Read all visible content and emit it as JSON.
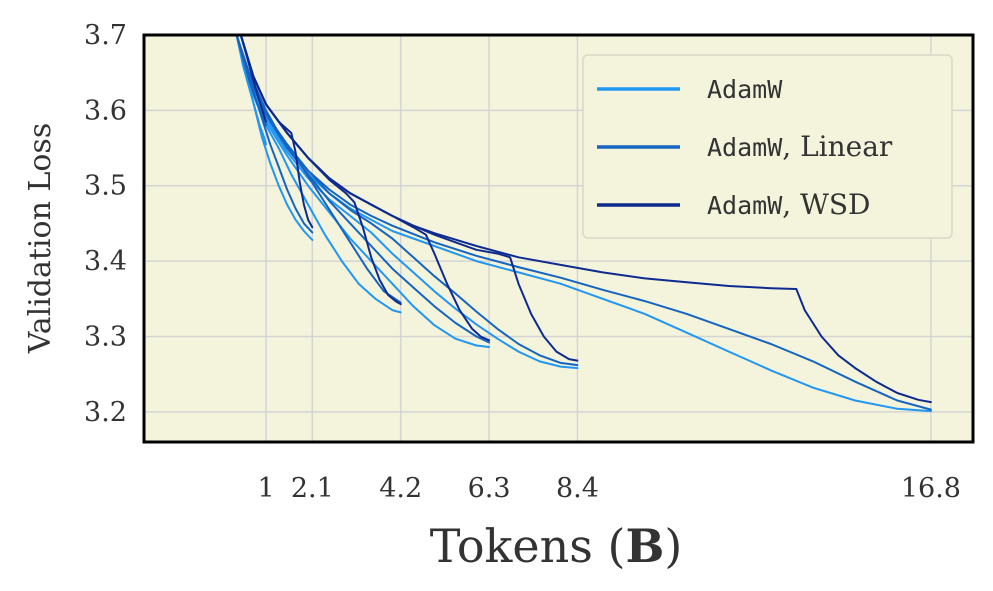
{
  "chart_data": {
    "type": "line",
    "xlabel_prefix": "Tokens",
    "xlabel_unit": "B",
    "ylabel": "Validation Loss",
    "xlim": [
      -1.9,
      17.8
    ],
    "ylim": [
      3.16,
      3.7
    ],
    "x_ticks": [
      {
        "value": 1,
        "label": "1"
      },
      {
        "value": 2.1,
        "label": "2.1"
      },
      {
        "value": 4.2,
        "label": "4.2"
      },
      {
        "value": 6.3,
        "label": "6.3"
      },
      {
        "value": 8.4,
        "label": "8.4"
      },
      {
        "value": 16.8,
        "label": "16.8"
      }
    ],
    "y_ticks": [
      {
        "value": 3.2,
        "label": "3.2"
      },
      {
        "value": 3.3,
        "label": "3.3"
      },
      {
        "value": 3.4,
        "label": "3.4"
      },
      {
        "value": 3.5,
        "label": "3.5"
      },
      {
        "value": 3.6,
        "label": "3.6"
      },
      {
        "value": 3.7,
        "label": "3.7"
      }
    ],
    "grid": true,
    "legend_position": "top-right",
    "legend": [
      {
        "label": "AdamW",
        "suffix": "",
        "color": "#2196f3"
      },
      {
        "label": "AdamW",
        "suffix": ", Linear",
        "color": "#1565c0"
      },
      {
        "label": "AdamW",
        "suffix": ", WSD",
        "color": "#0d2b8f"
      }
    ],
    "series": [
      {
        "group": "AdamW",
        "color": "#2196f3",
        "x": [
          0.3,
          0.45,
          0.6,
          0.75,
          0.85,
          0.95,
          1.0
        ],
        "y": [
          3.7,
          3.66,
          3.63,
          3.6,
          3.58,
          3.565,
          3.555
        ]
      },
      {
        "group": "AdamW",
        "color": "#2196f3",
        "x": [
          0.3,
          0.5,
          0.7,
          0.9,
          1.1,
          1.3,
          1.5,
          1.7,
          1.9,
          2.1
        ],
        "y": [
          3.7,
          3.655,
          3.61,
          3.565,
          3.53,
          3.5,
          3.475,
          3.455,
          3.44,
          3.428
        ]
      },
      {
        "group": "AdamW",
        "color": "#2196f3",
        "x": [
          0.3,
          0.5,
          0.7,
          1.0,
          1.3,
          1.6,
          2.0,
          2.4,
          2.8,
          3.2,
          3.6,
          4.0,
          4.2
        ],
        "y": [
          3.7,
          3.655,
          3.62,
          3.58,
          3.55,
          3.515,
          3.475,
          3.435,
          3.4,
          3.37,
          3.35,
          3.335,
          3.332
        ]
      },
      {
        "group": "AdamW",
        "color": "#2196f3",
        "x": [
          0.3,
          0.6,
          1.0,
          1.5,
          2.0,
          2.5,
          3.0,
          3.5,
          4.0,
          4.5,
          5.0,
          5.5,
          6.0,
          6.3
        ],
        "y": [
          3.7,
          3.64,
          3.585,
          3.54,
          3.5,
          3.465,
          3.43,
          3.4,
          3.37,
          3.34,
          3.315,
          3.297,
          3.288,
          3.286
        ]
      },
      {
        "group": "AdamW",
        "color": "#2196f3",
        "x": [
          0.3,
          0.6,
          1.0,
          1.5,
          2.0,
          2.5,
          3.0,
          3.5,
          4.0,
          4.5,
          5.0,
          5.5,
          6.0,
          6.5,
          7.0,
          7.5,
          8.0,
          8.4
        ],
        "y": [
          3.7,
          3.64,
          3.59,
          3.545,
          3.51,
          3.482,
          3.46,
          3.438,
          3.41,
          3.385,
          3.36,
          3.337,
          3.316,
          3.297,
          3.28,
          3.267,
          3.26,
          3.258
        ]
      },
      {
        "group": "AdamW",
        "color": "#2196f3",
        "x": [
          0.3,
          0.6,
          1.0,
          1.5,
          2.0,
          2.5,
          3.0,
          3.5,
          4.0,
          5.0,
          6.0,
          7.0,
          8.0,
          9.0,
          10.0,
          11.0,
          12.0,
          13.0,
          14.0,
          15.0,
          16.0,
          16.8
        ],
        "y": [
          3.7,
          3.64,
          3.59,
          3.55,
          3.515,
          3.49,
          3.47,
          3.455,
          3.44,
          3.42,
          3.4,
          3.385,
          3.37,
          3.35,
          3.33,
          3.305,
          3.28,
          3.255,
          3.232,
          3.215,
          3.204,
          3.201
        ]
      },
      {
        "group": "AdamW, Linear",
        "color": "#1565c0",
        "x": [
          0.3,
          0.45,
          0.6,
          0.75,
          0.9,
          1.0
        ],
        "y": [
          3.7,
          3.67,
          3.64,
          3.615,
          3.595,
          3.58
        ]
      },
      {
        "group": "AdamW, Linear",
        "color": "#1565c0",
        "x": [
          0.3,
          0.5,
          0.7,
          0.9,
          1.1,
          1.3,
          1.5,
          1.7,
          1.9,
          2.1
        ],
        "y": [
          3.7,
          3.66,
          3.625,
          3.59,
          3.555,
          3.525,
          3.495,
          3.47,
          3.45,
          3.438
        ]
      },
      {
        "group": "AdamW, Linear",
        "color": "#1565c0",
        "x": [
          0.3,
          0.6,
          1.0,
          1.4,
          1.8,
          2.2,
          2.6,
          3.0,
          3.4,
          3.8,
          4.2
        ],
        "y": [
          3.7,
          3.65,
          3.6,
          3.56,
          3.53,
          3.495,
          3.46,
          3.425,
          3.39,
          3.36,
          3.345
        ]
      },
      {
        "group": "AdamW, Linear",
        "color": "#1565c0",
        "x": [
          0.3,
          0.6,
          1.0,
          1.5,
          2.0,
          2.5,
          3.0,
          3.5,
          4.0,
          4.5,
          5.0,
          5.5,
          6.0,
          6.3
        ],
        "y": [
          3.7,
          3.645,
          3.595,
          3.55,
          3.515,
          3.48,
          3.45,
          3.42,
          3.39,
          3.365,
          3.34,
          3.318,
          3.3,
          3.292
        ]
      },
      {
        "group": "AdamW, Linear",
        "color": "#1565c0",
        "x": [
          0.3,
          0.6,
          1.0,
          1.5,
          2.0,
          2.5,
          3.0,
          3.5,
          4.0,
          4.5,
          5.0,
          5.5,
          6.0,
          6.5,
          7.0,
          7.5,
          8.0,
          8.4
        ],
        "y": [
          3.7,
          3.645,
          3.595,
          3.552,
          3.52,
          3.49,
          3.468,
          3.45,
          3.43,
          3.405,
          3.38,
          3.357,
          3.333,
          3.31,
          3.29,
          3.275,
          3.265,
          3.262
        ]
      },
      {
        "group": "AdamW, Linear",
        "color": "#1565c0",
        "x": [
          0.3,
          0.6,
          1.0,
          1.5,
          2.0,
          2.5,
          3.0,
          3.5,
          4.0,
          5.0,
          6.0,
          7.0,
          8.0,
          9.0,
          10.0,
          11.0,
          12.0,
          13.0,
          14.0,
          15.0,
          16.0,
          16.8
        ],
        "y": [
          3.7,
          3.645,
          3.595,
          3.555,
          3.52,
          3.495,
          3.475,
          3.46,
          3.447,
          3.425,
          3.407,
          3.392,
          3.378,
          3.362,
          3.347,
          3.33,
          3.31,
          3.29,
          3.267,
          3.24,
          3.215,
          3.203
        ]
      },
      {
        "group": "AdamW, WSD",
        "color": "#0d2b8f",
        "x": [
          0.4,
          0.6,
          0.8,
          1.0
        ],
        "y": [
          3.7,
          3.66,
          3.62,
          3.585
        ]
      },
      {
        "group": "AdamW, WSD",
        "color": "#0d2b8f",
        "x": [
          0.4,
          0.7,
          1.0,
          1.3,
          1.6,
          1.7,
          1.8,
          1.9,
          2.0,
          2.1
        ],
        "y": [
          3.7,
          3.645,
          3.608,
          3.585,
          3.57,
          3.545,
          3.505,
          3.475,
          3.455,
          3.445
        ]
      },
      {
        "group": "AdamW, WSD",
        "color": "#0d2b8f",
        "x": [
          0.4,
          0.7,
          1.0,
          1.5,
          2.0,
          2.5,
          2.9,
          3.1,
          3.3,
          3.5,
          3.7,
          3.9,
          4.1,
          4.2
        ],
        "y": [
          3.7,
          3.645,
          3.608,
          3.57,
          3.537,
          3.508,
          3.49,
          3.478,
          3.445,
          3.405,
          3.375,
          3.355,
          3.346,
          3.343
        ]
      },
      {
        "group": "AdamW, WSD",
        "color": "#0d2b8f",
        "x": [
          0.4,
          0.7,
          1.0,
          1.5,
          2.0,
          2.5,
          3.0,
          3.5,
          4.0,
          4.5,
          4.8,
          5.0,
          5.3,
          5.6,
          5.9,
          6.1,
          6.3
        ],
        "y": [
          3.7,
          3.645,
          3.608,
          3.57,
          3.537,
          3.51,
          3.49,
          3.475,
          3.46,
          3.445,
          3.435,
          3.41,
          3.37,
          3.335,
          3.31,
          3.3,
          3.295
        ]
      },
      {
        "group": "AdamW, WSD",
        "color": "#0d2b8f",
        "x": [
          0.4,
          0.7,
          1.0,
          1.5,
          2.0,
          2.5,
          3.0,
          3.5,
          4.0,
          4.5,
          5.0,
          5.5,
          6.0,
          6.5,
          6.8,
          7.0,
          7.3,
          7.6,
          7.9,
          8.2,
          8.4
        ],
        "y": [
          3.7,
          3.645,
          3.608,
          3.57,
          3.537,
          3.51,
          3.49,
          3.475,
          3.46,
          3.447,
          3.435,
          3.425,
          3.415,
          3.41,
          3.405,
          3.37,
          3.33,
          3.3,
          3.28,
          3.27,
          3.268
        ]
      },
      {
        "group": "AdamW, WSD",
        "color": "#0d2b8f",
        "x": [
          0.4,
          0.7,
          1.0,
          1.5,
          2.0,
          2.5,
          3.0,
          3.5,
          4.0,
          4.5,
          5.0,
          6.0,
          7.0,
          8.0,
          9.0,
          10.0,
          11.0,
          12.0,
          13.0,
          13.6,
          13.8,
          14.2,
          14.6,
          15.0,
          15.5,
          16.0,
          16.5,
          16.8
        ],
        "y": [
          3.7,
          3.645,
          3.608,
          3.57,
          3.537,
          3.51,
          3.49,
          3.475,
          3.46,
          3.447,
          3.437,
          3.42,
          3.405,
          3.395,
          3.385,
          3.377,
          3.372,
          3.367,
          3.364,
          3.363,
          3.335,
          3.3,
          3.275,
          3.258,
          3.24,
          3.225,
          3.216,
          3.213
        ]
      }
    ]
  }
}
